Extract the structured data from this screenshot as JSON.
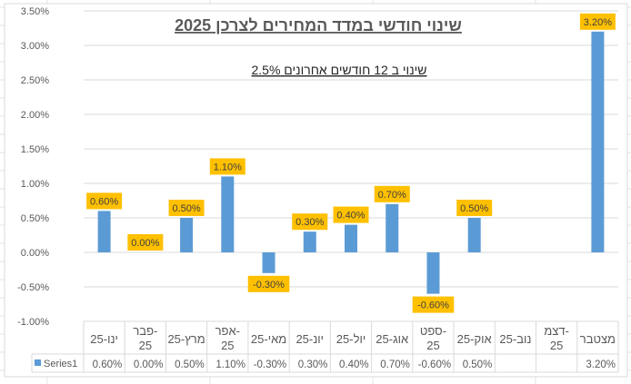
{
  "chart_data": {
    "type": "bar",
    "title": "שינוי חודשי במדד המחירים לצרכן 2025",
    "subtitle": "שינוי ב 12 חודשים אחרונים 2.5%",
    "categories": [
      [
        "ינו-25"
      ],
      [
        "פבר-",
        "25"
      ],
      [
        "מרץ-25"
      ],
      [
        "אפר-",
        "25"
      ],
      [
        "מאי-25"
      ],
      [
        "יונ-25"
      ],
      [
        "יול-25"
      ],
      [
        "אוג-25"
      ],
      [
        "ספט-",
        "25"
      ],
      [
        "אוק-25"
      ],
      [
        "נוב-25"
      ],
      [
        "דצמ-",
        "25"
      ],
      [
        "מצטבר"
      ]
    ],
    "series": [
      {
        "name": "Series1",
        "color": "#5B9BD5",
        "values": [
          0.6,
          0.0,
          0.5,
          1.1,
          -0.3,
          0.3,
          0.4,
          0.7,
          -0.6,
          0.5,
          null,
          null,
          3.2
        ],
        "labels": [
          "0.60%",
          "0.00%",
          "0.50%",
          "1.10%",
          "-0.30%",
          "0.30%",
          "0.40%",
          "0.70%",
          "-0.60%",
          "0.50%",
          "",
          "",
          "3.20%"
        ]
      }
    ],
    "ylim": [
      -1.0,
      3.5
    ],
    "yticks": [
      "3.50%",
      "3.00%",
      "2.50%",
      "2.00%",
      "1.50%",
      "1.00%",
      "0.50%",
      "0.00%",
      "-0.50%",
      "-1.00%"
    ],
    "ytick_values": [
      3.5,
      3.0,
      2.5,
      2.0,
      1.5,
      1.0,
      0.5,
      0.0,
      -0.5,
      -1.0
    ],
    "grid": true,
    "data_table": true,
    "label_color": "#FFC000"
  }
}
